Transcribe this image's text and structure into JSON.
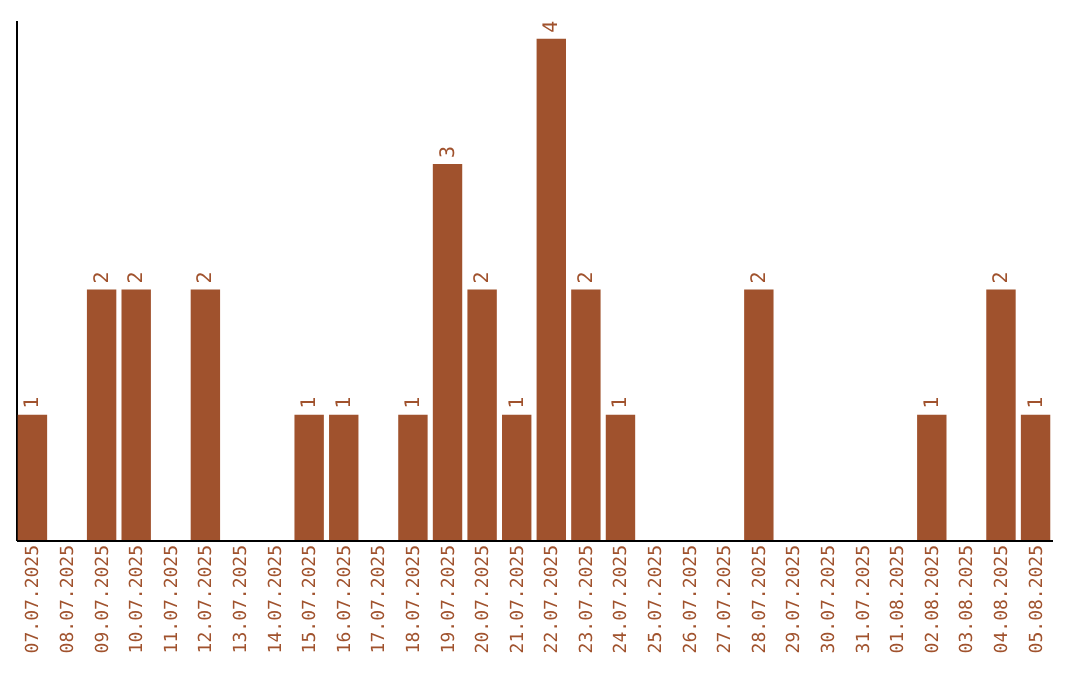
{
  "chart_data": {
    "type": "bar",
    "tick_labels": "x",
    "grid": false,
    "categories": [
      "07.07.2025",
      "08.07.2025",
      "09.07.2025",
      "10.07.2025",
      "11.07.2025",
      "12.07.2025",
      "13.07.2025",
      "14.07.2025",
      "15.07.2025",
      "16.07.2025",
      "17.07.2025",
      "18.07.2025",
      "19.07.2025",
      "20.07.2025",
      "21.07.2025",
      "22.07.2025",
      "23.07.2025",
      "24.07.2025",
      "25.07.2025",
      "26.07.2025",
      "27.07.2025",
      "28.07.2025",
      "29.07.2025",
      "30.07.2025",
      "31.07.2025",
      "01.08.2025",
      "02.08.2025",
      "03.08.2025",
      "04.08.2025",
      "05.08.2025"
    ],
    "values": [
      1,
      0,
      2,
      2,
      0,
      2,
      0,
      0,
      1,
      1,
      0,
      1,
      3,
      2,
      1,
      4,
      2,
      1,
      0,
      0,
      0,
      2,
      0,
      0,
      0,
      0,
      1,
      0,
      2,
      1
    ],
    "value_labels": [
      "1",
      null,
      "2",
      "2",
      null,
      "2",
      null,
      null,
      "1",
      "1",
      null,
      "1",
      "3",
      "2",
      "1",
      "4",
      "2",
      "1",
      null,
      null,
      null,
      "2",
      null,
      null,
      null,
      null,
      "1",
      null,
      "2",
      "1"
    ],
    "color": "#a0522d",
    "ylim": [
      0,
      4.15
    ]
  }
}
